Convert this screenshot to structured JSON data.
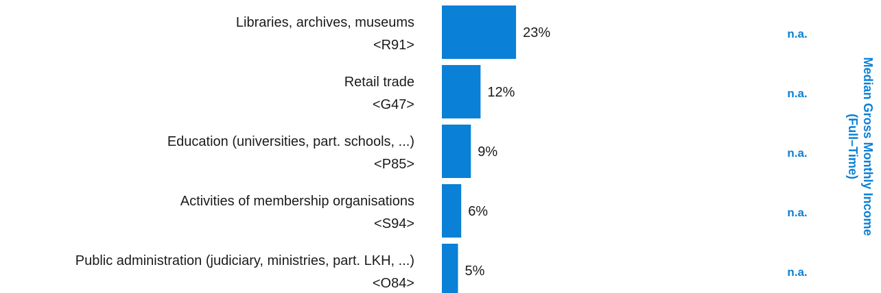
{
  "chart_data": {
    "type": "bar",
    "orientation": "horizontal",
    "categories": [
      {
        "name": "Libraries, archives, museums",
        "code": "<R91>"
      },
      {
        "name": "Retail trade",
        "code": "<G47>"
      },
      {
        "name": "Education (universities, part. schools, ...)",
        "code": "<P85>"
      },
      {
        "name": "Activities of membership organisations",
        "code": "<S94>"
      },
      {
        "name": "Public administration (judiciary, ministries, part. LKH, ...)",
        "code": "<O84>"
      }
    ],
    "values": [
      23,
      12,
      9,
      6,
      5
    ],
    "value_labels": [
      "23%",
      "12%",
      "9%",
      "6%",
      "5%"
    ],
    "unit": "%",
    "income_column": {
      "title_lines": [
        "Median Gross Monthly Income",
        "(Full–Time)"
      ],
      "values": [
        "n.a.",
        "n.a.",
        "n.a.",
        "n.a.",
        "n.a."
      ]
    },
    "colors": {
      "bar": "#0a80d6",
      "accent_text": "#0a80d6"
    }
  }
}
